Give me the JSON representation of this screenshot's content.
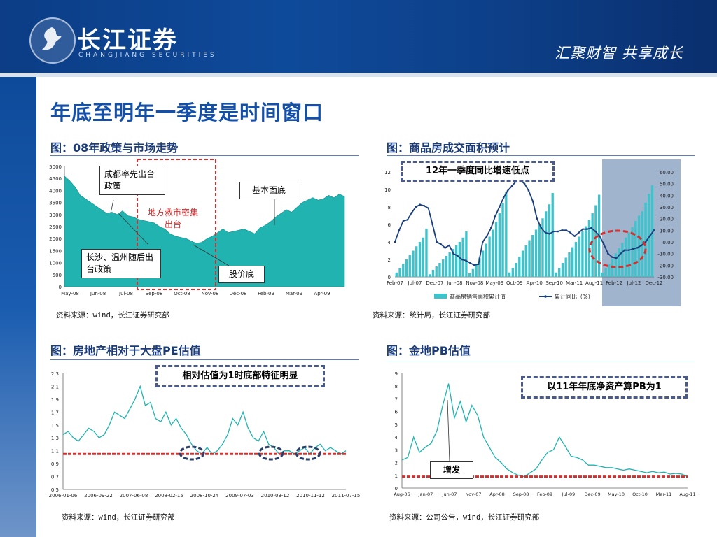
{
  "header": {
    "brand_cn": "长江证券",
    "brand_en": "CHANGJIANG SECURITIES",
    "slogan": "汇聚财智   共享成长",
    "logo_icon": "changjiang-logo-icon",
    "bg_color": "#0d438f"
  },
  "title": "年底至明年一季度是时间窗口",
  "panels": {
    "p1": {
      "caption": "图：08年政策与市场走势",
      "source": "资料来源：wind，长江证券研究部"
    },
    "p2": {
      "caption": "图：商品房成交面积预计",
      "source": "资料来源：统计局，长江证券研究部"
    },
    "p3": {
      "caption": "图：房地产相对于大盘PE估值",
      "source": "资料来源：wind，长江证券研究部"
    },
    "p4": {
      "caption": "图：金地PB估值",
      "source": "资料来源：公司公告，wind，长江证券研究部"
    }
  },
  "callouts": {
    "p1_a": "成都率先出台政策",
    "p1_b": "基本面底",
    "p1_c": "地方救市密集出台",
    "p1_d": "长沙、温州随后出台政策",
    "p1_e": "股价底",
    "p2_a": "12年一季度同比增速低点",
    "p3_a": "相对估值为1时底部特征明显",
    "p4_a": "以11年年底净资产算PB为1",
    "p4_b": "增发"
  },
  "chart_data": [
    {
      "type": "area",
      "x_ticks": [
        "May-08",
        "Jun-08",
        "Jul-08",
        "Sep-08",
        "Oct-08",
        "Nov-08",
        "Dec-08",
        "Feb-09",
        "Mar-09",
        "Apr-09"
      ],
      "y_ticks": [
        "0",
        "500",
        "1000",
        "1500",
        "2000",
        "2500",
        "3000",
        "3500",
        "4000",
        "4500",
        "5000"
      ],
      "ylim": [
        0,
        5000
      ],
      "series_color": "#20b3b0",
      "values": [
        4600,
        4400,
        4150,
        3800,
        3650,
        3500,
        3350,
        3200,
        3050,
        3100,
        3000,
        3150,
        2950,
        2900,
        2800,
        2750,
        2700,
        2650,
        2500,
        2400,
        2200,
        2100,
        2050,
        2000,
        1900,
        1800,
        1850,
        2000,
        2100,
        2250,
        2400,
        2250,
        2300,
        2350,
        2400,
        2300,
        2200,
        2450,
        2550,
        2700,
        2900,
        3050,
        3200,
        3100,
        3300,
        3500,
        3600,
        3700,
        3600,
        3650,
        3800,
        3700,
        3850,
        3750
      ]
    },
    {
      "type": "bar+line",
      "x_ticks": [
        "Feb-07",
        "Jul-07",
        "Dec-07",
        "Jun-08",
        "Nov-08",
        "May-09",
        "Oct-09",
        "Apr-10",
        "Sep-10",
        "Mar-11",
        "Aug-11",
        "Feb-12",
        "Jul-12",
        "Dec-12"
      ],
      "y_left_ticks": [
        "0",
        "2",
        "4",
        "6",
        "8",
        "10",
        "12"
      ],
      "y_right_ticks": [
        "-30.00",
        "-20.00",
        "-10.00",
        "0.00",
        "10.00",
        "20.00",
        "30.00",
        "40.00",
        "50.00",
        "60.00"
      ],
      "ylim_left": [
        0,
        12
      ],
      "ylim_right": [
        -30,
        60
      ],
      "legend": [
        "商品房销售面积累计值",
        "累计同比（%）"
      ],
      "bar_color": "#3cc3cc",
      "line_color": "#1a3f7c",
      "highlight_color": "#6f8cb4",
      "bars": [
        0.5,
        1,
        1.5,
        2,
        2.5,
        3,
        3.5,
        4,
        4.5,
        5.5,
        0.3,
        0.8,
        1.2,
        1.6,
        2,
        2.4,
        2.8,
        3.2,
        3.6,
        4,
        4.5,
        5.2,
        0.4,
        0.9,
        1.5,
        2.2,
        3,
        3.8,
        4.6,
        5.4,
        6.3,
        7.3,
        8.4,
        9.7,
        0.5,
        1,
        1.6,
        2.3,
        3,
        3.6,
        4.2,
        4.8,
        5.4,
        6,
        6.7,
        7.5,
        8.3,
        9.6,
        0.5,
        1,
        1.6,
        2.2,
        2.8,
        3.4,
        4,
        4.6,
        5.2,
        5.8,
        6.5,
        7.3,
        8.2,
        9.4,
        0.5,
        1,
        1.5,
        2.1,
        2.7,
        3.3,
        3.9,
        4.5,
        5.1,
        5.7,
        6.4,
        7,
        7.5,
        8.5,
        9.5,
        10.5
      ],
      "line": [
        0,
        10,
        18,
        19,
        25,
        30,
        32,
        31,
        29,
        15,
        0,
        -2,
        -5,
        -3,
        -10,
        -12,
        -15,
        -16,
        -18,
        -20,
        -19,
        0,
        5,
        12,
        22,
        30,
        38,
        44,
        48,
        52,
        53,
        50,
        44,
        35,
        20,
        12,
        8,
        7,
        9,
        9,
        10,
        10,
        8,
        5,
        8,
        11,
        11,
        12,
        9,
        5,
        -2,
        -10,
        -13,
        -14,
        -10,
        -7,
        -7,
        -6,
        -5,
        -3,
        0,
        5,
        10
      ]
    },
    {
      "type": "line",
      "x_ticks": [
        "2006-01-06",
        "2006-09-22",
        "2007-06-08",
        "2008-02-15",
        "2008-10-24",
        "2009-07-03",
        "2010-03-12",
        "2010-11-12",
        "2011-07-15"
      ],
      "y_ticks": [
        "0.5",
        "0.7",
        "0.9",
        "1.1",
        "1.3",
        "1.5",
        "1.7",
        "1.9",
        "2.1",
        "2.3"
      ],
      "ylim": [
        0.5,
        2.3
      ],
      "reference_value": 1.05,
      "series_color": "#20b3b0",
      "values": [
        1.35,
        1.4,
        1.3,
        1.25,
        1.35,
        1.45,
        1.4,
        1.3,
        1.35,
        1.5,
        1.7,
        1.65,
        1.6,
        1.75,
        1.9,
        2.1,
        1.8,
        1.85,
        1.6,
        1.55,
        1.7,
        1.5,
        1.6,
        1.45,
        1.35,
        1.2,
        1.1,
        1.05,
        1.15,
        1.05,
        1.1,
        1.2,
        1.35,
        1.6,
        1.5,
        1.7,
        1.45,
        1.3,
        1.25,
        1.4,
        1.2,
        1.15,
        1.05,
        1.1,
        1.1,
        1.05,
        1.1,
        1.15,
        1.05,
        1.15,
        1.2,
        1.1,
        1.15,
        1.1,
        1.05,
        1.1
      ]
    },
    {
      "type": "line",
      "x_ticks": [
        "Aug-06",
        "Jan-07",
        "Jun-07",
        "Nov-07",
        "Apr-08",
        "Sep-08",
        "Feb-09",
        "Jul-09",
        "Dec-09",
        "May-10",
        "Oct-10",
        "Mar-11",
        "Aug-11"
      ],
      "y_ticks": [
        "0",
        "1",
        "2",
        "3",
        "4",
        "5",
        "6",
        "7",
        "8",
        "9"
      ],
      "ylim": [
        0,
        9
      ],
      "reference_value": 0.9,
      "series_color": "#20b3b0",
      "values": [
        2.2,
        2.4,
        4,
        2.8,
        3.2,
        3.5,
        4.5,
        6.5,
        8.2,
        5.5,
        6.8,
        5.2,
        6.5,
        5.7,
        4,
        3.2,
        2.4,
        2,
        1.5,
        1.2,
        1,
        0.9,
        1.2,
        1.5,
        2.2,
        2.8,
        3,
        4,
        3.3,
        2.5,
        2.4,
        2.2,
        1.8,
        1.8,
        1.7,
        1.6,
        1.6,
        1.5,
        1.4,
        1.5,
        1.4,
        1.3,
        1.2,
        1.3,
        1.2,
        1.25,
        1.1,
        1.15,
        1.1,
        0.9
      ]
    }
  ]
}
